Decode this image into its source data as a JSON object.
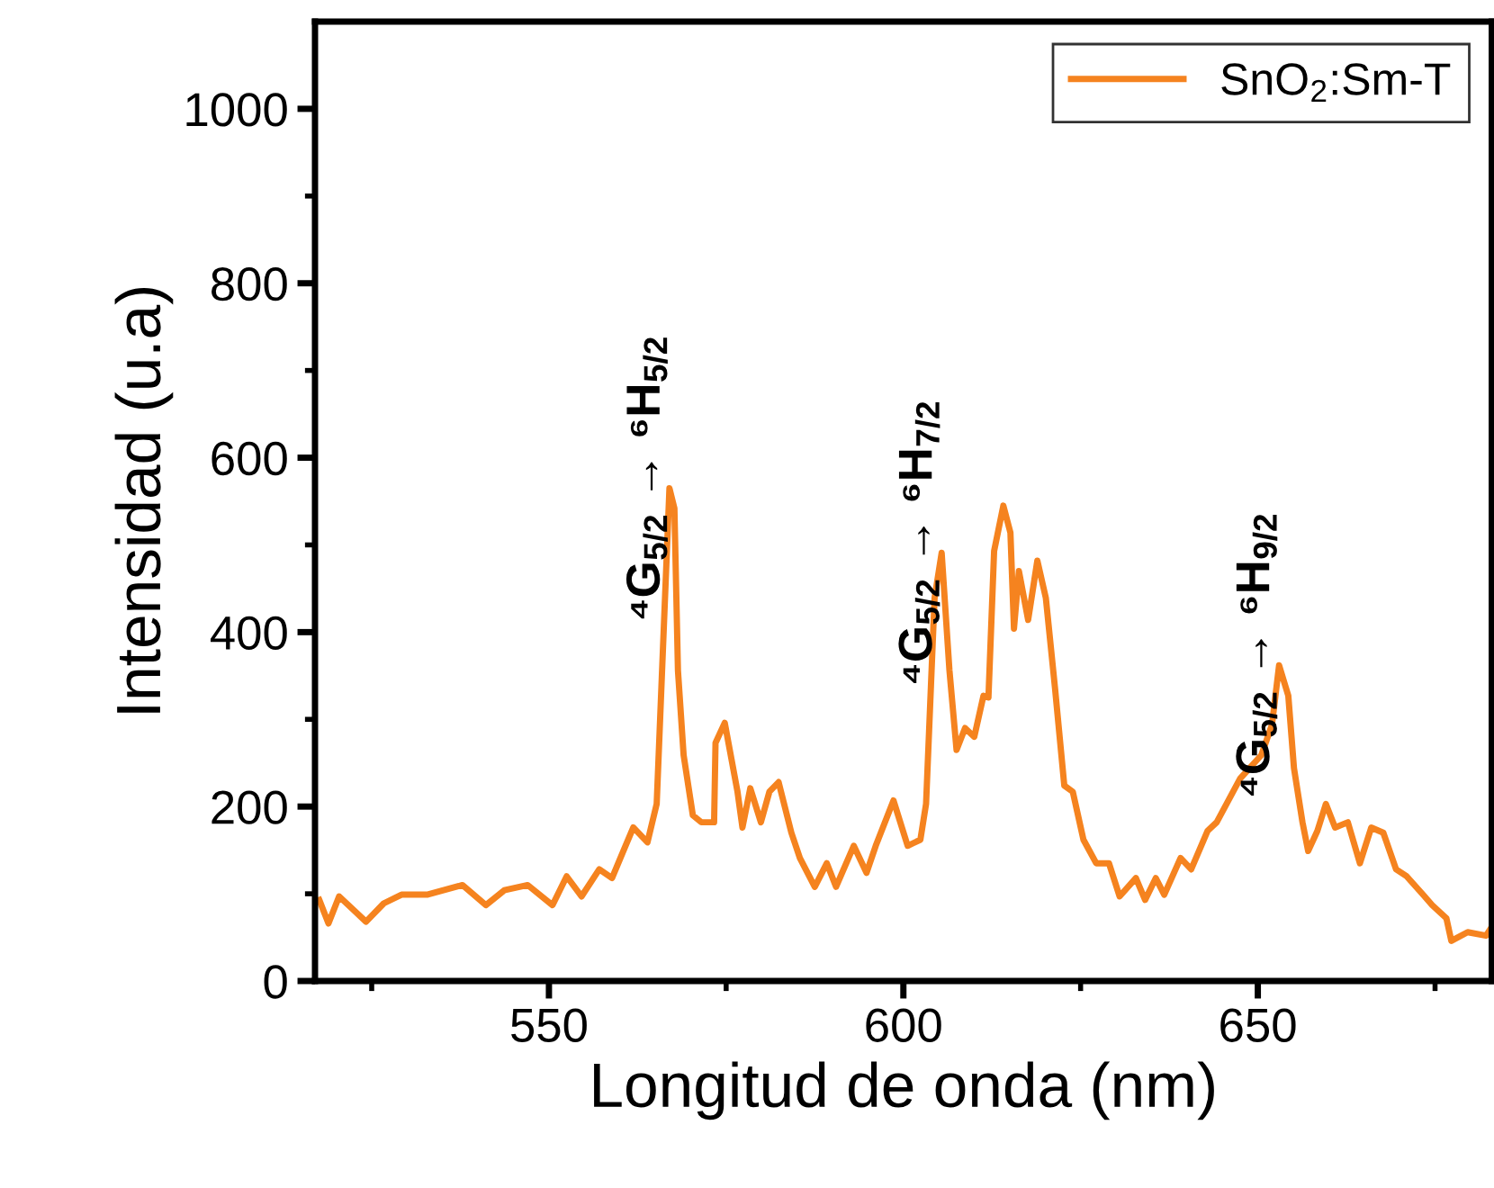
{
  "chart_data": {
    "type": "line",
    "xlabel": "Longitud de onda (nm)",
    "ylabel": "Intensidad (u.a)",
    "series": [
      {
        "name": "SnO$_{2}$:Sm-T",
        "color": "#f5831f",
        "x": [
          517.6,
          518.9,
          520.4,
          524.2,
          526.7,
          529.2,
          532.8,
          537.8,
          541.1,
          543.7,
          547,
          550.5,
          552.5,
          554.6,
          557.1,
          558.9,
          560.6,
          561.9,
          563.9,
          565.2,
          567,
          567.7,
          568.2,
          569,
          570.3,
          571.5,
          573.3,
          573.5,
          574.8,
          576.6,
          577.3,
          578.4,
          579.9,
          581.1,
          582.4,
          584.2,
          585.4,
          587.5,
          589.2,
          590.5,
          593,
          594.8,
          596.1,
          598.6,
          600.6,
          602.4,
          603.2,
          604.4,
          605.4,
          606.5,
          607.5,
          608.7,
          610,
          611.3,
          612,
          612.8,
          614.1,
          615.1,
          615.6,
          616.3,
          617.6,
          618.9,
          620.1,
          621.4,
          622.7,
          623.9,
          625.4,
          627.2,
          629,
          630.5,
          632.8,
          634.1,
          635.6,
          636.8,
          639.1,
          640.6,
          642.9,
          644.2,
          647.5,
          650.5,
          652,
          653,
          654.3,
          655.1,
          656.3,
          657.1,
          658.4,
          659.6,
          660.9,
          662.7,
          664.4,
          666,
          667.7,
          669.5,
          671,
          673.3,
          674.6,
          676.6,
          677.3,
          679.6,
          682.2,
          683
        ],
        "values": [
          93,
          66,
          97,
          68,
          89,
          99,
          99,
          110,
          87,
          104,
          110,
          87,
          120,
          97,
          128,
          118,
          151,
          176,
          159,
          203,
          565,
          542,
          356,
          259,
          190,
          182,
          182,
          273,
          296,
          217,
          176,
          221,
          182,
          217,
          228,
          170,
          141,
          108,
          135,
          108,
          155,
          124,
          155,
          207,
          155,
          162,
          203,
          439,
          491,
          356,
          265,
          290,
          280,
          327,
          325,
          493,
          545,
          514,
          404,
          470,
          414,
          482,
          439,
          335,
          224,
          217,
          162,
          135,
          135,
          97,
          118,
          93,
          118,
          99,
          141,
          128,
          172,
          182,
          232,
          259,
          294,
          362,
          327,
          244,
          182,
          149,
          172,
          203,
          176,
          182,
          135,
          176,
          170,
          128,
          120,
          99,
          87,
          72,
          46,
          56,
          52,
          62
        ]
      }
    ],
    "xlim": [
      517,
      683
    ],
    "xticks": [
      {
        "value": 525,
        "label": null
      },
      550,
      {
        "value": 575,
        "label": null
      },
      600,
      {
        "value": 625,
        "label": null
      },
      650,
      {
        "value": 675,
        "label": null
      }
    ],
    "ylim": [
      0,
      1100
    ],
    "yticks": [
      0,
      {
        "value": 100,
        "label": null
      },
      200,
      {
        "value": 300,
        "label": null
      },
      400,
      {
        "value": 500,
        "label": null
      },
      600,
      {
        "value": 700,
        "label": null
      },
      800,
      {
        "value": 900,
        "label": null
      },
      1000
    ],
    "annotations": [
      {
        "text": "⁴G$_{5/2}$ → ⁶H$_{5/2}$",
        "x": 567,
        "y": 565
      },
      {
        "text": "⁴G$_{5/2}$ → ⁶H$_{7/2}$",
        "x": 605.4,
        "y": 491
      },
      {
        "text": "⁴G$_{5/2}$ → ⁶H$_{9/2}$",
        "x": 653,
        "y": 362
      }
    ],
    "legend": "top right",
    "grid": false,
    "line_style": "solid",
    "marker": "none"
  }
}
